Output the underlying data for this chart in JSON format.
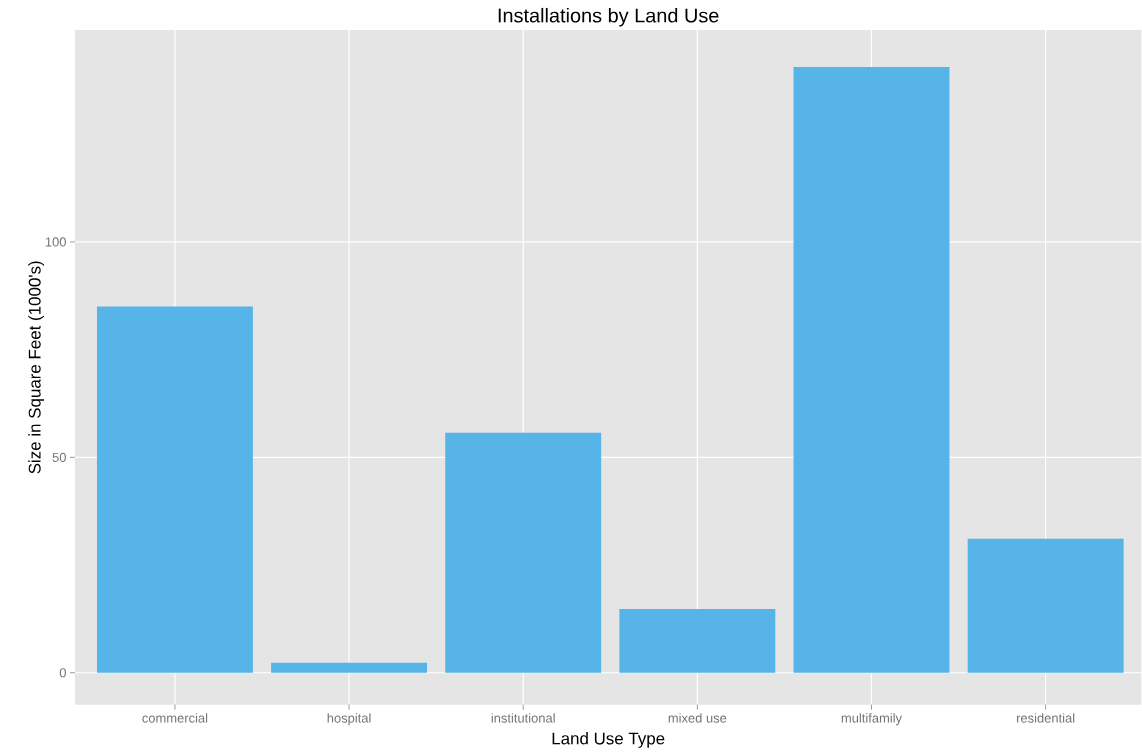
{
  "chart_data": {
    "type": "bar",
    "title": "Installations by Land Use",
    "xlabel": "Land Use Type",
    "ylabel": "Size in Square Feet (1000's)",
    "categories": [
      "commercial",
      "hospital",
      "institutional",
      "mixed use",
      "multifamily",
      "residential"
    ],
    "values": [
      85,
      2.3,
      55.7,
      14.8,
      140.6,
      31.1
    ],
    "color": "#56b4e9",
    "ylim": [
      -7.4,
      149.2
    ],
    "yticks": [
      0,
      50,
      100
    ],
    "grid": true
  }
}
